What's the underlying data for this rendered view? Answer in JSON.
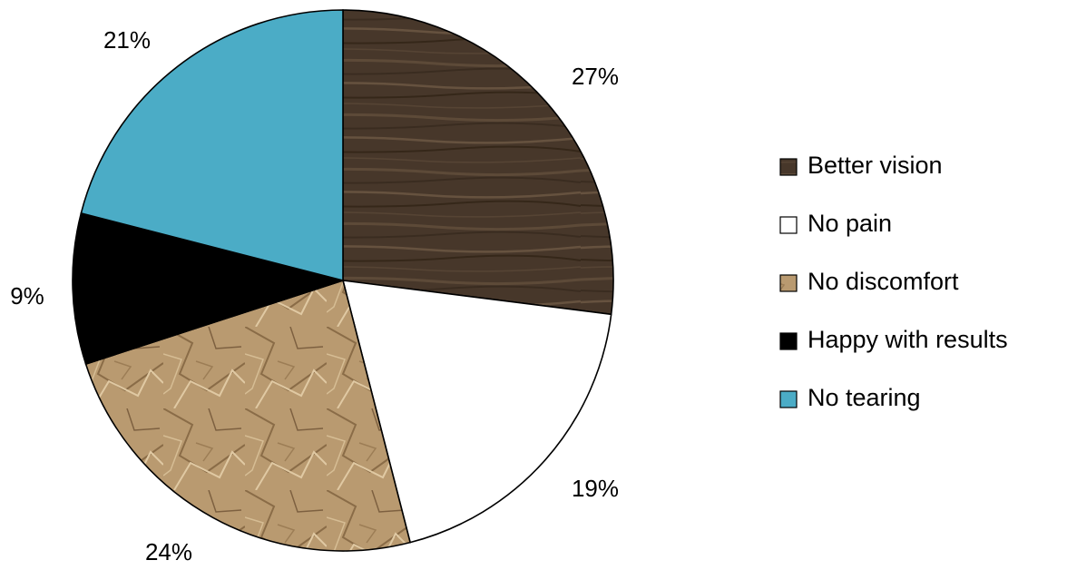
{
  "chart_data": {
    "type": "pie",
    "title": "",
    "legend_position": "right",
    "slices": [
      {
        "label": "Better vision",
        "value": 27,
        "value_label": "27%",
        "color": "#4a3a2c",
        "pattern": "wood-grain"
      },
      {
        "label": "No pain",
        "value": 19,
        "value_label": "19%",
        "color": "#ffffff",
        "pattern": "none"
      },
      {
        "label": "No discomfort",
        "value": 24,
        "value_label": "24%",
        "color": "#b8976c",
        "pattern": "crumpled-paper"
      },
      {
        "label": "Happy with results",
        "value": 9,
        "value_label": "9%",
        "color": "#000000",
        "pattern": "none"
      },
      {
        "label": "No tearing",
        "value": 21,
        "value_label": "21%",
        "color": "#4bacc6",
        "pattern": "none"
      }
    ]
  }
}
